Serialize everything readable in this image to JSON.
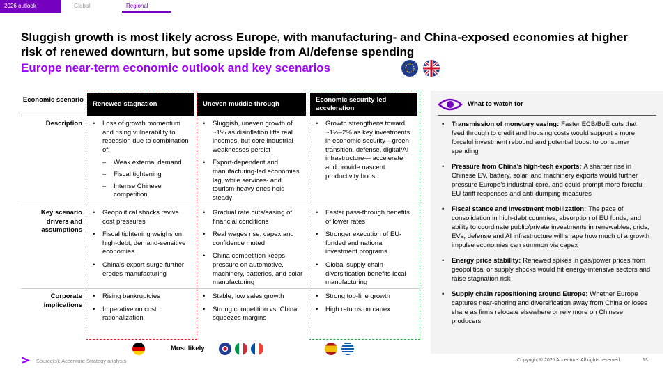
{
  "tabs": [
    "2026 outlook",
    "Global",
    "Regional"
  ],
  "header": {
    "title": "Sluggish growth is most likely across Europe, with manufacturing- and China-exposed economies at higher risk of renewed downturn, but some upside from AI/defense spending",
    "subtitle": "Europe near-term economic outlook and key scenarios"
  },
  "table": {
    "corner": "Economic scenario",
    "columns": [
      "Renewed stagnation",
      "Uneven muddle-through",
      "Economic security-led acceleration"
    ],
    "rows": [
      {
        "label": "Description",
        "cells": [
          [
            {
              "text": "Loss of growth momentum and rising vulnerability to recession due to combination of:",
              "sub": [
                "Weak external demand",
                "Fiscal tightening",
                "Intense Chinese competition"
              ]
            }
          ],
          [
            {
              "text": "Sluggish, uneven growth of ~1% as disinflation lifts real incomes, but core industrial weaknesses persist"
            },
            {
              "text": "Export-dependent and manufacturing-led economies lag, while services- and tourism-heavy ones hold steady"
            }
          ],
          [
            {
              "text": "Growth strengthens toward ~1½–2% as key investments in economic security—green transition, defense, digital/AI infrastructure— accelerate and provide nascent productivity boost"
            }
          ]
        ]
      },
      {
        "label": "Key scenario drivers and assumptions",
        "cells": [
          [
            {
              "text": "Geopolitical shocks revive cost pressures"
            },
            {
              "text": "Fiscal tightening weighs on high-debt, demand-sensitive economies"
            },
            {
              "text": "China’s export surge further erodes manufacturing"
            }
          ],
          [
            {
              "text": "Gradual rate cuts/easing of financial conditions"
            },
            {
              "text": "Real wages rise; capex and confidence muted"
            },
            {
              "text": "China competition keeps pressure on automotive, machinery, batteries, and solar manufacturing"
            }
          ],
          [
            {
              "text": "Faster pass-through benefits of lower rates"
            },
            {
              "text": "Stronger execution of EU-funded and national investment programs"
            },
            {
              "text": "Global supply chain diversification benefits local manufacturing"
            }
          ]
        ]
      },
      {
        "label": "Corporate implications",
        "cells": [
          [
            {
              "text": "Rising bankruptcies"
            },
            {
              "text": "Imperative on cost rationalization"
            }
          ],
          [
            {
              "text": "Stable, low sales growth"
            },
            {
              "text": "Strong competition vs. China squeezes margins"
            }
          ],
          [
            {
              "text": "Strong top-line growth"
            },
            {
              "text": "High returns on capex"
            }
          ]
        ]
      }
    ]
  },
  "most_likely": "Most likely",
  "watch": {
    "title": "What to watch for",
    "items": [
      {
        "lead": "Transmission of monetary easing:",
        "text": "Faster ECB/BoE cuts that feed through to credit and housing costs would support a more forceful investment rebound and potential boost to consumer spending"
      },
      {
        "lead": "Pressure from China’s high-tech exports:",
        "text": "A sharper rise in Chinese EV, battery, solar, and machinery exports would further pressure Europe’s industrial core, and could prompt more forceful EU tariff responses and anti-dumping measures"
      },
      {
        "lead": "Fiscal stance and investment mobilization:",
        "text": "The pace of consolidation in high-debt countries, absorption of EU funds, and ability to coordinate public/private investments in renewables, grids, EVs, defense and AI infrastructure will shape how much of a growth impulse economies can summon via capex"
      },
      {
        "lead": "Energy price stability:",
        "text": "Renewed spikes in gas/power prices from geopolitical or supply shocks would hit energy-intensive sectors and raise stagnation risk"
      },
      {
        "lead": "Supply chain repositioning around Europe:",
        "text": "Whether Europe captures near-shoring and diversification away from China or loses share as firms relocate elsewhere or rely more on Chinese producers"
      }
    ]
  },
  "footer": {
    "source": "Source(s): Accenture Strategy analysis",
    "copyright": "Copyright © 2025 Accenture. All rights reserved.",
    "page": "13"
  }
}
